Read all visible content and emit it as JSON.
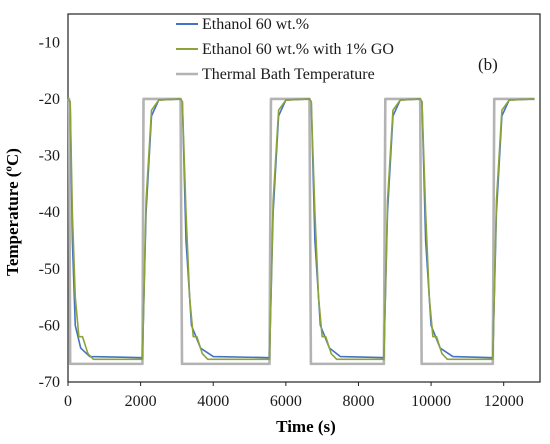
{
  "chart_data": {
    "type": "line",
    "panel_label": "(b)",
    "xlabel": "Time (s)",
    "ylabel": "Temperature (ºC)",
    "xlim": [
      0,
      13000
    ],
    "ylim": [
      -70,
      -5
    ],
    "x_ticks": [
      0,
      2000,
      4000,
      6000,
      8000,
      10000,
      12000
    ],
    "y_ticks": [
      -10,
      -20,
      -30,
      -40,
      -50,
      -60,
      -70
    ],
    "grid": false,
    "legend_position": "top-left",
    "series": [
      {
        "name": "Thermal Bath Temperature",
        "color": "#b3b3b3",
        "x": [
          0,
          30,
          60,
          2050,
          2080,
          3100,
          3140,
          5550,
          5590,
          6650,
          6690,
          8700,
          8740,
          9700,
          9740,
          11700,
          11740,
          12850
        ],
        "y": [
          -20,
          -20,
          -66.8,
          -66.8,
          -20,
          -20,
          -66.8,
          -66.8,
          -20,
          -20,
          -66.8,
          -66.8,
          -20,
          -20,
          -66.8,
          -66.8,
          -20,
          -20
        ]
      },
      {
        "name": "Ethanol 60 wt.%",
        "color": "#4472c4",
        "x": [
          0,
          60,
          120,
          200,
          350,
          600,
          2050,
          2150,
          2300,
          2500,
          3100,
          3150,
          3250,
          3400,
          3650,
          4000,
          5550,
          5650,
          5800,
          6000,
          6650,
          6700,
          6800,
          6950,
          7200,
          7500,
          8700,
          8800,
          8950,
          9150,
          9700,
          9750,
          9850,
          10000,
          10250,
          10600,
          11700,
          11800,
          11950,
          12150,
          12850
        ],
        "y": [
          -20,
          -20.5,
          -45,
          -60,
          -64,
          -65.5,
          -65.7,
          -40,
          -23,
          -20.2,
          -20,
          -20.5,
          -45,
          -60,
          -64,
          -65.5,
          -65.7,
          -40,
          -23,
          -20.2,
          -20,
          -20.5,
          -45,
          -60,
          -64,
          -65.5,
          -65.7,
          -40,
          -23,
          -20.2,
          -20,
          -20.5,
          -45,
          -60,
          -64,
          -65.5,
          -65.7,
          -40,
          -23,
          -20.2,
          -20
        ]
      },
      {
        "name": "Ethanol 60 wt.% with 1% GO",
        "color": "#8ca33c",
        "x": [
          0,
          60,
          120,
          200,
          300,
          400,
          550,
          700,
          2050,
          2150,
          2300,
          2500,
          3100,
          3150,
          3250,
          3350,
          3450,
          3550,
          3700,
          3850,
          5550,
          5650,
          5800,
          6000,
          6650,
          6700,
          6800,
          6900,
          7000,
          7100,
          7250,
          7400,
          8700,
          8800,
          8950,
          9150,
          9700,
          9750,
          9850,
          9950,
          10050,
          10150,
          10300,
          10450,
          11700,
          11800,
          11950,
          12150,
          12850
        ],
        "y": [
          -20,
          -20.5,
          -40,
          -55,
          -62,
          -62,
          -65,
          -66,
          -66,
          -38,
          -22,
          -20.2,
          -20,
          -20.5,
          -40,
          -55,
          -62,
          -62,
          -65,
          -66,
          -66,
          -38,
          -22,
          -20.2,
          -20,
          -20.5,
          -40,
          -55,
          -62,
          -62,
          -65,
          -66,
          -66,
          -38,
          -22,
          -20.2,
          -20,
          -20.5,
          -40,
          -55,
          -62,
          -62,
          -65,
          -66,
          -66,
          -38,
          -22,
          -20.2,
          -20
        ]
      }
    ]
  }
}
